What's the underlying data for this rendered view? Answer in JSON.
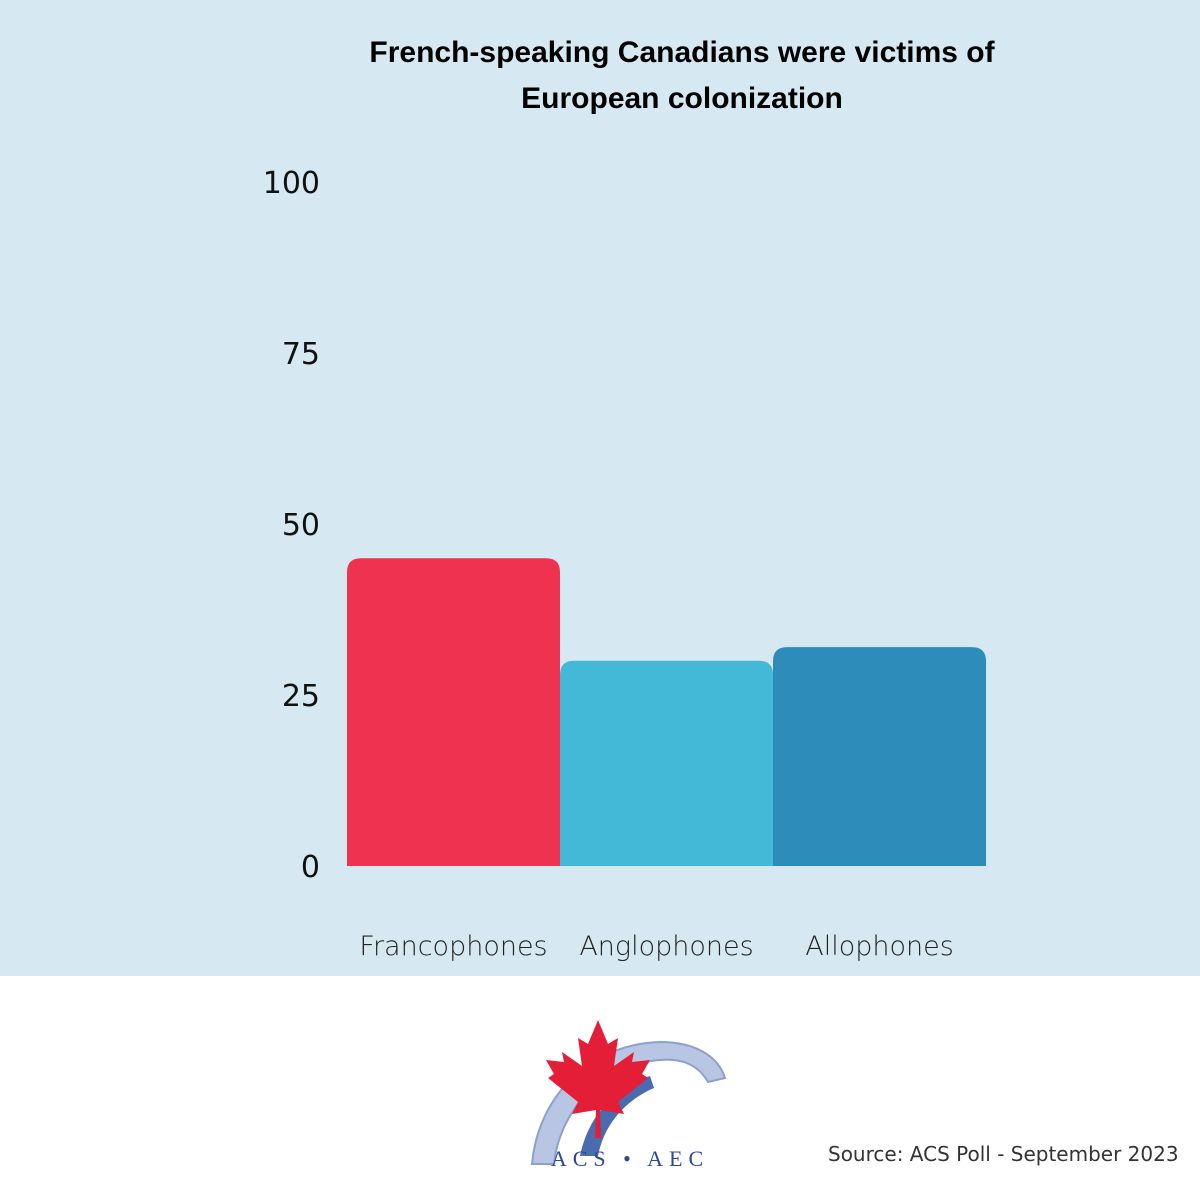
{
  "chart_data": {
    "type": "bar",
    "title": "French-speaking Canadians were victims of European colonization",
    "categories": [
      "Francophones",
      "Anglophones",
      "Allophones"
    ],
    "values": [
      45,
      30,
      32
    ],
    "colors": [
      "#ee3250",
      "#43b8d7",
      "#2e8cba"
    ],
    "yticks": [
      "0",
      "25",
      "50",
      "75",
      "100"
    ],
    "ylim": [
      0,
      100
    ],
    "grid": false,
    "xlabel": "",
    "ylabel": ""
  },
  "footer": {
    "logo_text": "ACS • AEC",
    "source": "Source: ACS Poll - September 2023",
    "logo_icon": "maple-leaf-icon"
  }
}
